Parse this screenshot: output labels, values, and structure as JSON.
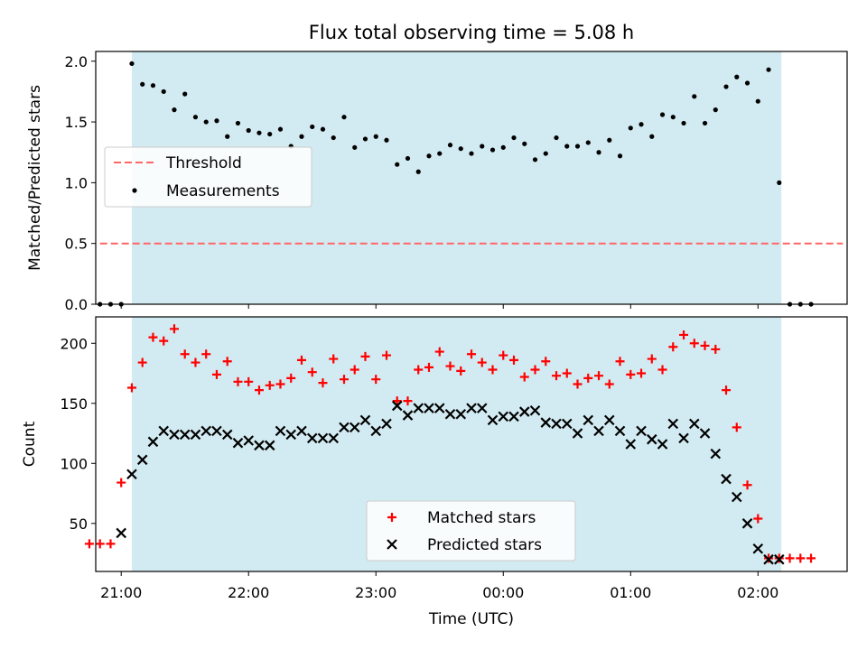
{
  "figure": {
    "title": "Flux total observing time = 5.08 h",
    "xlabel": "Time (UTC)"
  },
  "colors": {
    "observing_span": "#add8e6",
    "threshold": "#ff6666",
    "measurements": "#000000",
    "matched": "#ff0000",
    "predicted": "#000000"
  },
  "chart_data": [
    {
      "type": "scatter",
      "panel": "top",
      "ylabel": "Matched/Predicted stars",
      "xlim": [
        "20:48",
        "02:42"
      ],
      "ylim": [
        0,
        2.08
      ],
      "x_ticks": [
        "21:00",
        "22:00",
        "23:00",
        "00:00",
        "01:00",
        "02:00"
      ],
      "x_tick_labels_shown": false,
      "y_ticks": [
        "0.0",
        "0.5",
        "1.0",
        "1.5",
        "2.0"
      ],
      "shaded_span": [
        "21:05",
        "02:11"
      ],
      "legend": {
        "placement": "center-left",
        "entries": [
          "Threshold",
          "Measurements"
        ]
      },
      "series": [
        {
          "name": "Threshold",
          "kind": "dashed-line",
          "x": [
            "20:50",
            "02:40"
          ],
          "values": [
            0.5,
            0.5
          ]
        },
        {
          "name": "Measurements",
          "kind": "dot",
          "x": [
            "20:50",
            "20:55",
            "21:00",
            "21:05",
            "21:10",
            "21:15",
            "21:20",
            "21:25",
            "21:30",
            "21:35",
            "21:40",
            "21:45",
            "21:50",
            "21:55",
            "22:00",
            "22:05",
            "22:10",
            "22:15",
            "22:20",
            "22:25",
            "22:30",
            "22:35",
            "22:40",
            "22:45",
            "22:50",
            "22:55",
            "23:00",
            "23:05",
            "23:10",
            "23:15",
            "23:20",
            "23:25",
            "23:30",
            "23:35",
            "23:40",
            "23:45",
            "23:50",
            "23:55",
            "00:00",
            "00:05",
            "00:10",
            "00:15",
            "00:20",
            "00:25",
            "00:30",
            "00:35",
            "00:40",
            "00:45",
            "00:50",
            "00:55",
            "01:00",
            "01:05",
            "01:10",
            "01:15",
            "01:20",
            "01:25",
            "01:30",
            "01:35",
            "01:40",
            "01:45",
            "01:50",
            "01:55",
            "02:00",
            "02:05",
            "02:10",
            "02:15",
            "02:20",
            "02:25"
          ],
          "values": [
            0,
            0,
            0,
            1.98,
            1.81,
            1.8,
            1.75,
            1.6,
            1.73,
            1.54,
            1.5,
            1.51,
            1.38,
            1.49,
            1.43,
            1.41,
            1.4,
            1.44,
            1.3,
            1.38,
            1.46,
            1.44,
            1.37,
            1.54,
            1.29,
            1.36,
            1.38,
            1.35,
            1.15,
            1.2,
            1.09,
            1.22,
            1.24,
            1.31,
            1.28,
            1.24,
            1.3,
            1.27,
            1.29,
            1.37,
            1.32,
            1.19,
            1.24,
            1.37,
            1.3,
            1.3,
            1.33,
            1.25,
            1.35,
            1.22,
            1.45,
            1.48,
            1.38,
            1.56,
            1.54,
            1.49,
            1.71,
            1.49,
            1.6,
            1.79,
            1.87,
            1.82,
            1.67,
            1.93,
            1.0,
            0,
            0,
            0
          ]
        }
      ]
    },
    {
      "type": "scatter",
      "panel": "bottom",
      "ylabel": "Count",
      "xlim": [
        "20:48",
        "02:42"
      ],
      "ylim": [
        10,
        222
      ],
      "x_ticks": [
        "21:00",
        "22:00",
        "23:00",
        "00:00",
        "01:00",
        "02:00"
      ],
      "y_ticks": [
        "50",
        "100",
        "150",
        "200"
      ],
      "shaded_span": [
        "21:05",
        "02:11"
      ],
      "legend": {
        "placement": "lower-center",
        "entries": [
          "Matched stars",
          "Predicted stars"
        ]
      },
      "series": [
        {
          "name": "Matched stars",
          "marker": "plus",
          "x": [
            "20:45",
            "20:50",
            "20:55",
            "21:00",
            "21:05",
            "21:10",
            "21:15",
            "21:20",
            "21:25",
            "21:30",
            "21:35",
            "21:40",
            "21:45",
            "21:50",
            "21:55",
            "22:00",
            "22:05",
            "22:10",
            "22:15",
            "22:20",
            "22:25",
            "22:30",
            "22:35",
            "22:40",
            "22:45",
            "22:50",
            "22:55",
            "23:00",
            "23:05",
            "23:10",
            "23:15",
            "23:20",
            "23:25",
            "23:30",
            "23:35",
            "23:40",
            "23:45",
            "23:50",
            "23:55",
            "00:00",
            "00:05",
            "00:10",
            "00:15",
            "00:20",
            "00:25",
            "00:30",
            "00:35",
            "00:40",
            "00:45",
            "00:50",
            "00:55",
            "01:00",
            "01:05",
            "01:10",
            "01:15",
            "01:20",
            "01:25",
            "01:30",
            "01:35",
            "01:40",
            "01:45",
            "01:50",
            "01:55",
            "02:00",
            "02:05",
            "02:10",
            "02:15",
            "02:20",
            "02:25"
          ],
          "values": [
            33,
            33,
            33,
            84,
            163,
            184,
            205,
            202,
            212,
            191,
            184,
            191,
            174,
            185,
            168,
            168,
            161,
            165,
            166,
            171,
            186,
            176,
            167,
            187,
            170,
            178,
            189,
            170,
            190,
            152,
            152,
            178,
            180,
            193,
            181,
            177,
            191,
            184,
            178,
            190,
            186,
            172,
            178,
            185,
            173,
            175,
            166,
            171,
            173,
            166,
            185,
            174,
            175,
            187,
            178,
            197,
            207,
            200,
            198,
            195,
            161,
            130,
            82,
            54,
            21,
            21,
            21,
            21,
            21
          ]
        },
        {
          "name": "Predicted stars",
          "marker": "x",
          "x": [
            "21:00",
            "21:05",
            "21:10",
            "21:15",
            "21:20",
            "21:25",
            "21:30",
            "21:35",
            "21:40",
            "21:45",
            "21:50",
            "21:55",
            "22:00",
            "22:05",
            "22:10",
            "22:15",
            "22:20",
            "22:25",
            "22:30",
            "22:35",
            "22:40",
            "22:45",
            "22:50",
            "22:55",
            "23:00",
            "23:05",
            "23:10",
            "23:15",
            "23:20",
            "23:25",
            "23:30",
            "23:35",
            "23:40",
            "23:45",
            "23:50",
            "23:55",
            "00:00",
            "00:05",
            "00:10",
            "00:15",
            "00:20",
            "00:25",
            "00:30",
            "00:35",
            "00:40",
            "00:45",
            "00:50",
            "00:55",
            "01:00",
            "01:05",
            "01:10",
            "01:15",
            "01:20",
            "01:25",
            "01:30",
            "01:35",
            "01:40",
            "01:45",
            "01:50",
            "01:55",
            "02:00",
            "02:05",
            "02:10"
          ],
          "values": [
            42,
            91,
            103,
            118,
            127,
            124,
            124,
            124,
            127,
            127,
            124,
            117,
            119,
            115,
            115,
            127,
            124,
            127,
            121,
            121,
            121,
            130,
            130,
            136,
            127,
            133,
            148,
            140,
            146,
            146,
            146,
            141,
            141,
            146,
            146,
            136,
            139,
            139,
            143,
            144,
            134,
            133,
            133,
            125,
            136,
            127,
            136,
            127,
            116,
            127,
            120,
            116,
            133,
            121,
            133,
            125,
            108,
            87,
            72,
            50,
            29,
            20,
            20
          ]
        }
      ]
    }
  ]
}
